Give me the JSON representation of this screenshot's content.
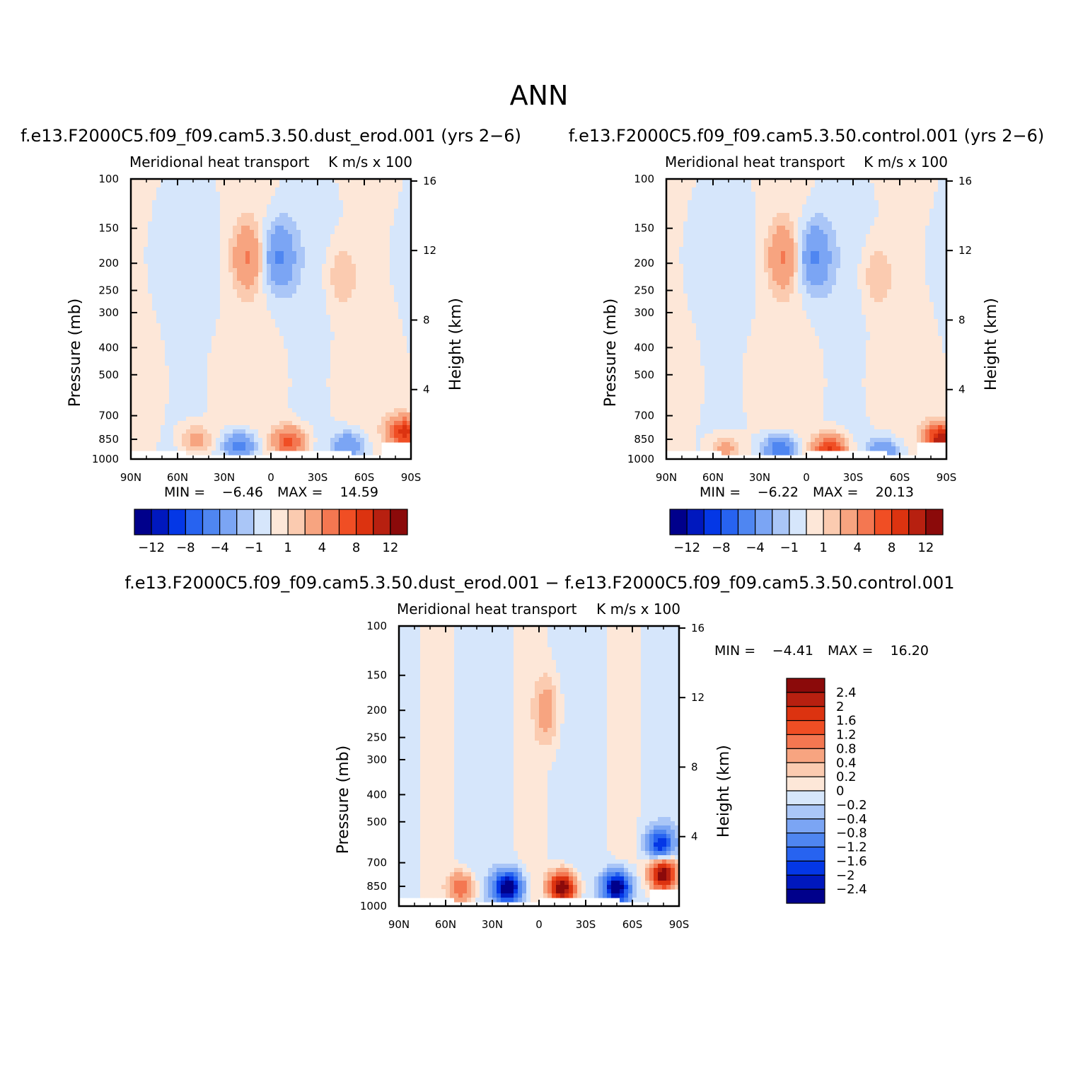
{
  "title": "ANN",
  "chart_data": [
    {
      "type": "heatmap",
      "case_title": "f.e13.F2000C5.f09_f09.cam5.3.50.dust_erod.001 (yrs 2−6)",
      "variable": "Meridional heat transport",
      "units": "K m/s x 100",
      "xlabel": "",
      "ylabel": "Pressure (mb)",
      "ylabel_right": "Height (km)",
      "x_ticks": [
        "90N",
        "60N",
        "30N",
        "0",
        "30S",
        "60S",
        "90S"
      ],
      "y_ticks": [
        "100",
        "150",
        "200",
        "250",
        "300",
        "400",
        "500",
        "700",
        "850",
        "1000"
      ],
      "y_right_ticks": [
        "16",
        "12",
        "8",
        "4"
      ],
      "min_label": "MIN =",
      "min_value": "−6.46",
      "max_label": "MAX =",
      "max_value": "14.59",
      "colorbar_ticks": [
        "−12",
        "−8",
        "−4",
        "−1",
        "1",
        "4",
        "8",
        "12"
      ],
      "features": [
        {
          "lat": 48,
          "p": 850,
          "v": 3
        },
        {
          "lat": 20,
          "p": 900,
          "v": -5
        },
        {
          "lat": -12,
          "p": 870,
          "v": 7
        },
        {
          "lat": -50,
          "p": 900,
          "v": -4
        },
        {
          "lat": -86,
          "p": 800,
          "v": 9
        },
        {
          "lat": 15,
          "p": 190,
          "v": 4
        },
        {
          "lat": -5,
          "p": 190,
          "v": -4
        },
        {
          "lat": -45,
          "p": 220,
          "v": 2
        }
      ]
    },
    {
      "type": "heatmap",
      "case_title": "f.e13.F2000C5.f09_f09.cam5.3.50.control.001 (yrs 2−6)",
      "variable": "Meridional heat transport",
      "units": "K m/s x 100",
      "xlabel": "",
      "ylabel": "Pressure (mb)",
      "ylabel_right": "Height (km)",
      "x_ticks": [
        "90N",
        "60N",
        "30N",
        "0",
        "30S",
        "60S",
        "90S"
      ],
      "y_ticks": [
        "100",
        "150",
        "200",
        "250",
        "300",
        "400",
        "500",
        "700",
        "850",
        "1000"
      ],
      "y_right_ticks": [
        "16",
        "12",
        "8",
        "4"
      ],
      "min_label": "MIN =",
      "min_value": "−6.22",
      "max_label": "MAX =",
      "max_value": "20.13",
      "colorbar_ticks": [
        "−12",
        "−8",
        "−4",
        "−1",
        "1",
        "4",
        "8",
        "12"
      ],
      "features": [
        {
          "lat": 52,
          "p": 930,
          "v": 3
        },
        {
          "lat": 17,
          "p": 930,
          "v": -6
        },
        {
          "lat": -15,
          "p": 930,
          "v": 9
        },
        {
          "lat": -50,
          "p": 950,
          "v": -4
        },
        {
          "lat": -87,
          "p": 850,
          "v": 12
        },
        {
          "lat": 15,
          "p": 190,
          "v": 4
        },
        {
          "lat": -5,
          "p": 190,
          "v": -4
        },
        {
          "lat": -45,
          "p": 220,
          "v": 2
        }
      ]
    },
    {
      "type": "heatmap",
      "case_title": "f.e13.F2000C5.f09_f09.cam5.3.50.dust_erod.001 − f.e13.F2000C5.f09_f09.cam5.3.50.control.001",
      "variable": "Meridional heat transport",
      "units": "K m/s x 100",
      "xlabel": "",
      "ylabel": "Pressure (mb)",
      "ylabel_right": "Height (km)",
      "x_ticks": [
        "90N",
        "60N",
        "30N",
        "0",
        "30S",
        "60S",
        "90S"
      ],
      "y_ticks": [
        "100",
        "150",
        "200",
        "250",
        "300",
        "400",
        "500",
        "700",
        "850",
        "1000"
      ],
      "y_right_ticks": [
        "16",
        "12",
        "8",
        "4"
      ],
      "min_label": "MIN =",
      "min_value": "−4.41",
      "max_label": "MAX =",
      "max_value": "16.20",
      "colorbar_ticks": [
        "2.4",
        "2",
        "1.6",
        "1.2",
        "0.8",
        "0.4",
        "0.2",
        "0",
        "−0.2",
        "−0.4",
        "−0.8",
        "−1.2",
        "−1.6",
        "−2",
        "−2.4"
      ],
      "features": [
        {
          "lat": 50,
          "p": 860,
          "v": 1.2
        },
        {
          "lat": 20,
          "p": 860,
          "v": -3
        },
        {
          "lat": -15,
          "p": 860,
          "v": 3
        },
        {
          "lat": -50,
          "p": 860,
          "v": -3
        },
        {
          "lat": -80,
          "p": 770,
          "v": 3
        },
        {
          "lat": -78,
          "p": 600,
          "v": -1.8
        },
        {
          "lat": -5,
          "p": 200,
          "v": 0.6
        }
      ]
    }
  ],
  "colors": {
    "palette": [
      "#00008b",
      "#0018be",
      "#0437e6",
      "#2763f0",
      "#4f86f1",
      "#7ba5f4",
      "#aac6f7",
      "#d6e6fb",
      "#fde7d8",
      "#fbcbb0",
      "#f7a480",
      "#f47751",
      "#f04e24",
      "#dc3310",
      "#b72010",
      "#8b0a0a"
    ]
  }
}
